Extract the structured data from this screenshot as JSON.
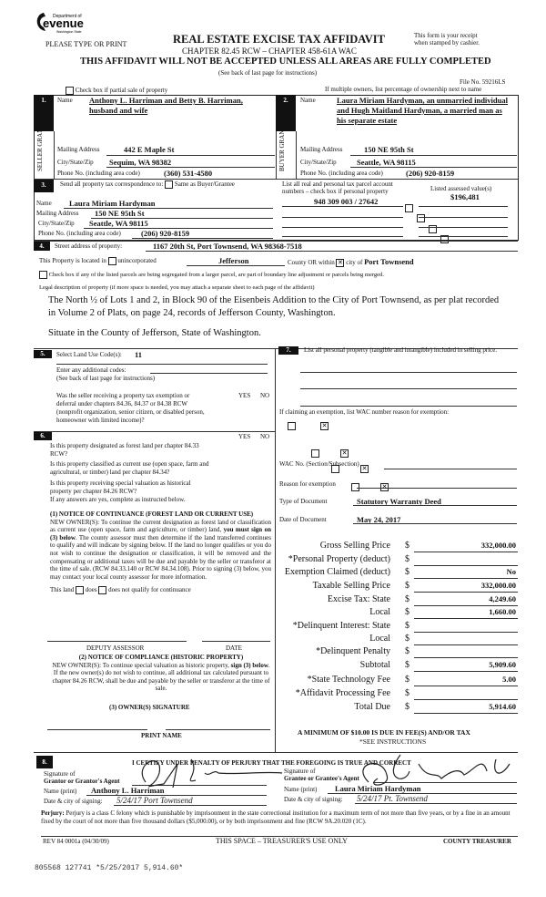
{
  "header": {
    "logo_text": [
      "Department of",
      "Revenue",
      "Washington State"
    ],
    "please_type": "PLEASE TYPE OR PRINT",
    "title": "REAL ESTATE EXCISE TAX AFFIDAVIT",
    "chapter": "CHAPTER 82.45 RCW – CHAPTER 458-61A WAC",
    "warning": "THIS AFFIDAVIT WILL NOT BE ACCEPTED UNLESS ALL AREAS ARE FULLY COMPLETED",
    "instructions": "(See back of last page for instructions)",
    "receipt_line1": "This form is your receipt",
    "receipt_line2": "when stamped by cashier.",
    "file_no": "File No. 59216LS",
    "partial_sale": "Check box if partial sale of property",
    "multiple_owners": "If multiple owners, list percentage of ownership next to name"
  },
  "seller": {
    "num": "1.",
    "side_label": "SELLER GRANTOR",
    "name_label": "Name",
    "name_line1": "Anthony L. Harriman and Betty B. Harriman,",
    "name_line2": "husband and wife",
    "mailing_label": "Mailing Address",
    "mailing": "442 E Maple St",
    "city_label": "City/State/Zip",
    "city": "Sequim, WA 98382",
    "phone_label": "Phone No. (including area code)",
    "phone": "(360) 531-4580"
  },
  "buyer": {
    "num": "2.",
    "side_label": "BUYER GRANTEE",
    "name_label": "Name",
    "name_line1": "Laura Miriam Hardyman, an unmarried individual",
    "name_line2": "and Hugh Maitland Hardyman, a married man as",
    "name_line3": "his separate estate",
    "mailing_label": "Mailing Address",
    "mailing": "150 NE 95th St",
    "city_label": "City/State/Zip",
    "city": "Seattle, WA 98115",
    "phone_label": "Phone No. (including area code)",
    "phone": "(206) 920-8159"
  },
  "section3": {
    "num": "3.",
    "send_label": "Send all property tax correspondence to:",
    "same_as": "Same as Buyer/Grantee",
    "name_label": "Name",
    "name": "Laura Miriam Hardyman",
    "mailing_label": "Mailing Address",
    "mailing": "150 NE 95th St",
    "city_label": "City/State/Zip",
    "city": "Seattle, WA 98115",
    "phone_label": "Phone No. (including area code)",
    "phone": "(206) 920-8159",
    "parcel_label1": "List all real and personal tax parcel account",
    "parcel_label2": "numbers – check box if personal property",
    "assessed_label": "Listed assessed value(s)",
    "parcel": "948 309 003 / 27642",
    "assessed": "$196,481"
  },
  "section4": {
    "num": "4.",
    "street_label": "Street address of property:",
    "street": "1167 20th St, Port Townsend, WA  98368-7518",
    "located_label": "This Property is located in",
    "unincorporated": "unincorporated",
    "county": "Jefferson",
    "county_or": "County OR  within",
    "city_of": "city of",
    "city": "Port Townsend",
    "segregated": "Check box if any of the listed parcels are being segregated from a larger parcel, are part of boundary line adjustment or parcels being merged.",
    "legal_label": "Legal description of property (if more space is needed, you may attach a separate sheet to each page of the affidavit)",
    "legal_line1": "The North ½ of Lots 1 and 2, in Block 90 of the Eisenbeis Addition to the City of Port Townsend, as per plat recorded",
    "legal_line2": "in Volume 2 of Plats, on page 24, records of Jefferson County, Washington.",
    "situate": "Situate in the County of Jefferson, State of Washington."
  },
  "section5": {
    "num": "5.",
    "land_use_label": "Select Land Use Code(s):",
    "land_use": "11",
    "additional": "Enter any additional codes:",
    "see_back": "(See back of last page for instructions)",
    "exemption_q": [
      "Was the seller receiving a property tax exemption or",
      "deferral under chapters 84.36, 84.37 or 84.38 RCW",
      "(nonprofit organization, senior citizen, or disabled person,",
      "homeowner with limited income)?"
    ],
    "yes": "YES",
    "no": "NO",
    "answer": "NO"
  },
  "section6": {
    "num": "6.",
    "yes": "YES",
    "no": "NO",
    "questions": [
      {
        "l1": "Is this property designated as forest land per chapter 84.33",
        "l2": "RCW?",
        "answer": "NO"
      },
      {
        "l1": "Is this property classified as current use (open space, farm and",
        "l2": "agricultural, or timber) land per chapter 84.34?",
        "answer": "NO"
      },
      {
        "l1": "Is this property receiving special valuation as historical",
        "l2": "property per chapter 84.26 RCW?",
        "answer": "NO"
      }
    ],
    "if_yes": "If any answers are yes, complete as instructed below.",
    "notice1_title": "(1) NOTICE OF CONTINUANCE (FOREST LAND OR CURRENT USE)",
    "notice1_a": "NEW OWNER(S): To continue the current designation as forest land or classification as current use (open space, farm and agriculture, or timber) land, ",
    "notice1_bold": "you must sign on (3) below",
    "notice1_b": ". The county assessor must then determine if the land transferred continues to qualify and will indicate by signing below. If the land no longer qualifies or you do not wish to continue the designation or classification, it will be removed and the compensating or additional taxes will be due and payable by the seller or transferor at the time of sale. (RCW 84.33.140 or RCW 84.34.108). Prior to signing (3) below, you may contact your local county assessor for more information.",
    "this_land": "This land",
    "does": "does",
    "does_not": "does not  qualify for continuance",
    "deputy": "DEPUTY ASSESSOR",
    "date": "DATE",
    "notice2_title": "(2) NOTICE OF COMPLIANCE (HISTORIC PROPERTY)",
    "notice2_a": "NEW OWNER(S):  To continue special valuation as historic property, ",
    "notice2_bold": "sign (3) below",
    "notice2_b": ".  If the new owner(s) do not wish to continue, all additional tax calculated pursuant to chapter 84.26 RCW, shall be due and payable by the seller or transferor at the time of sale.",
    "owner_sig": "(3)  OWNER(S) SIGNATURE",
    "print_name": "PRINT NAME"
  },
  "section7": {
    "num": "7.",
    "personal_label": "List all personal property (tangible and intangible) included in selling price.",
    "exemption_label": "If claiming an exemption, list WAC number reason for exemption:",
    "wac_label": "WAC No. (Section/Subsection)",
    "reason_label": "Reason for exemption",
    "doc_type_label": "Type of Document",
    "doc_type": "Statutory Warranty Deed",
    "doc_date_label": "Date of Document",
    "doc_date": "May 24, 2017",
    "financials": [
      {
        "label": "Gross Selling Price",
        "value": "332,000.00"
      },
      {
        "label": "*Personal Property (deduct)",
        "value": ""
      },
      {
        "label": "Exemption Claimed (deduct)",
        "value": "No"
      },
      {
        "label": "Taxable Selling Price",
        "value": "332,000.00"
      },
      {
        "label": "Excise Tax:  State",
        "value": "4,249.60"
      },
      {
        "label": "Local",
        "value": "1,660.00"
      },
      {
        "label": "*Delinquent Interest:  State",
        "value": ""
      },
      {
        "label": "Local",
        "value": ""
      },
      {
        "label": "*Delinquent Penalty",
        "value": ""
      },
      {
        "label": "Subtotal",
        "value": "5,909.60"
      },
      {
        "label": "*State Technology Fee",
        "value": "5.00"
      },
      {
        "label": "*Affidavit Processing Fee",
        "value": ""
      },
      {
        "label": "Total Due",
        "value": "5,914.60"
      }
    ],
    "currency": "$",
    "minimum": "A MINIMUM OF $10.00 IS DUE IN FEE(S) AND/OR TAX",
    "see_instr": "*SEE INSTRUCTIONS"
  },
  "section8": {
    "num": "8.",
    "certify": "I CERTIFY UNDER PENALTY OF PERJURY THAT THE FOREGOING IS TRUE AND CORRECT",
    "grantor_sig_l1": "Signature of",
    "grantor_sig_l2": "Grantor or Grantor's Agent",
    "grantor_name_label": "Name (print)",
    "grantor_name": "Anthony L. Harriman",
    "grantor_date_label": "Date & city of signing:",
    "grantee_sig_l1": "Signature of",
    "grantee_sig_l2": "Grantee or Grantee's Agent",
    "grantee_name_label": "Name (print)",
    "grantee_name": "Laura Miriam Hardyman",
    "grantee_date_label": "Date & city of signing:",
    "handwritten_grantor_date": "5/24/17 Port Townsend",
    "handwritten_grantee_date": "5/24/17 Pt. Townsend"
  },
  "footer": {
    "perjury_bold": "Perjury:",
    "perjury": " Perjury is a class C felony which is punishable by imprisonment in the state correctional institution for a maximum term of not more than five years, or by a fine in an amount fixed by the court of not more than five thousand dollars ($5,000.00), or by both imprisonment and fine (RCW 9A.20.020 (1C).",
    "rev": "REV 84 0001a (04/30/09)",
    "treasurer_use": "THIS SPACE – TREASURER'S USE ONLY",
    "county_treasurer": "COUNTY TREASURER",
    "stamp": "805568 127741 *5/25/2017 5,914.60*"
  }
}
